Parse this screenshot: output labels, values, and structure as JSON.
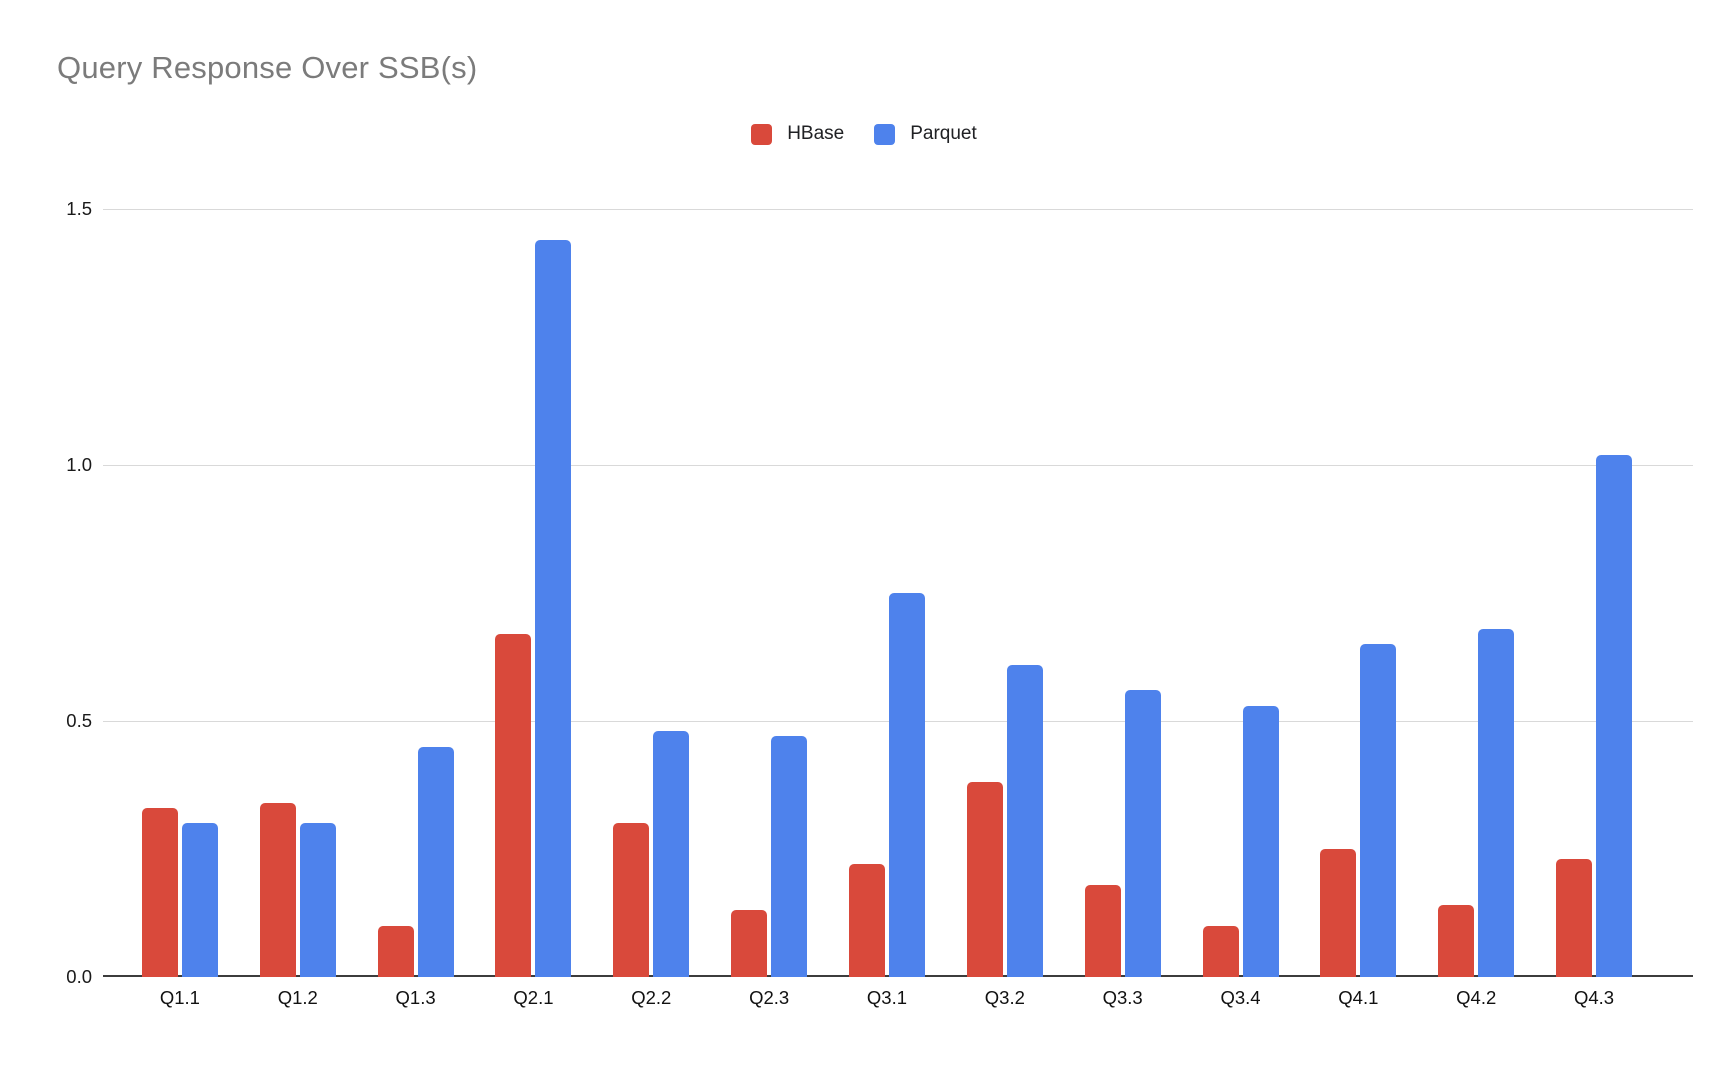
{
  "chart_data": {
    "type": "bar",
    "title": "Query Response Over SSB(s)",
    "xlabel": "",
    "ylabel": "",
    "categories": [
      "Q1.1",
      "Q1.2",
      "Q1.3",
      "Q2.1",
      "Q2.2",
      "Q2.3",
      "Q3.1",
      "Q3.2",
      "Q3.3",
      "Q3.4",
      "Q4.1",
      "Q4.2",
      "Q4.3"
    ],
    "series": [
      {
        "name": "HBase",
        "color": "#d9493b",
        "values": [
          0.33,
          0.34,
          0.1,
          0.67,
          0.3,
          0.13,
          0.22,
          0.38,
          0.18,
          0.1,
          0.25,
          0.14,
          0.23
        ]
      },
      {
        "name": "Parquet",
        "color": "#4e82ec",
        "values": [
          0.3,
          0.3,
          0.45,
          1.44,
          0.48,
          0.47,
          0.75,
          0.61,
          0.56,
          0.53,
          0.65,
          0.68,
          1.02
        ]
      }
    ],
    "ylim": [
      0,
      1.5
    ],
    "yticks": [
      "0.0",
      "0.5",
      "1.0",
      "1.5"
    ],
    "grid": true,
    "legend_position": "top-center"
  },
  "colors": {
    "background": "#ffffff",
    "title_text": "#7b7b7b",
    "axis_text": "#1a1a1a",
    "gridline": "#d9d9d9",
    "baseline": "#3c3c3c"
  }
}
